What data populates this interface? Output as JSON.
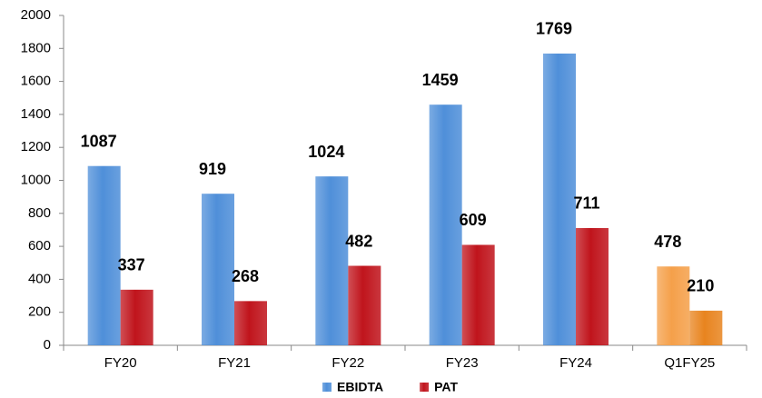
{
  "chart_data": {
    "type": "bar",
    "categories": [
      "FY20",
      "FY21",
      "FY22",
      "FY23",
      "FY24",
      "Q1FY25"
    ],
    "series": [
      {
        "name": "EBIDTA",
        "color": "#4f8fd9",
        "colors": [
          "#4f8fd9",
          "#4f8fd9",
          "#4f8fd9",
          "#4f8fd9",
          "#4f8fd9",
          "#f5a04a"
        ],
        "values": [
          1087,
          919,
          1024,
          1459,
          1769,
          478
        ]
      },
      {
        "name": "PAT",
        "color": "#c0141c",
        "colors": [
          "#c0141c",
          "#c0141c",
          "#c0141c",
          "#c0141c",
          "#c0141c",
          "#e8841f"
        ],
        "values": [
          337,
          268,
          482,
          609,
          711,
          210
        ]
      }
    ],
    "ylim": [
      0,
      2000
    ],
    "yticks": [
      0,
      200,
      400,
      600,
      800,
      1000,
      1200,
      1400,
      1600,
      1800,
      2000
    ],
    "grid": false,
    "legend": "bottom"
  }
}
